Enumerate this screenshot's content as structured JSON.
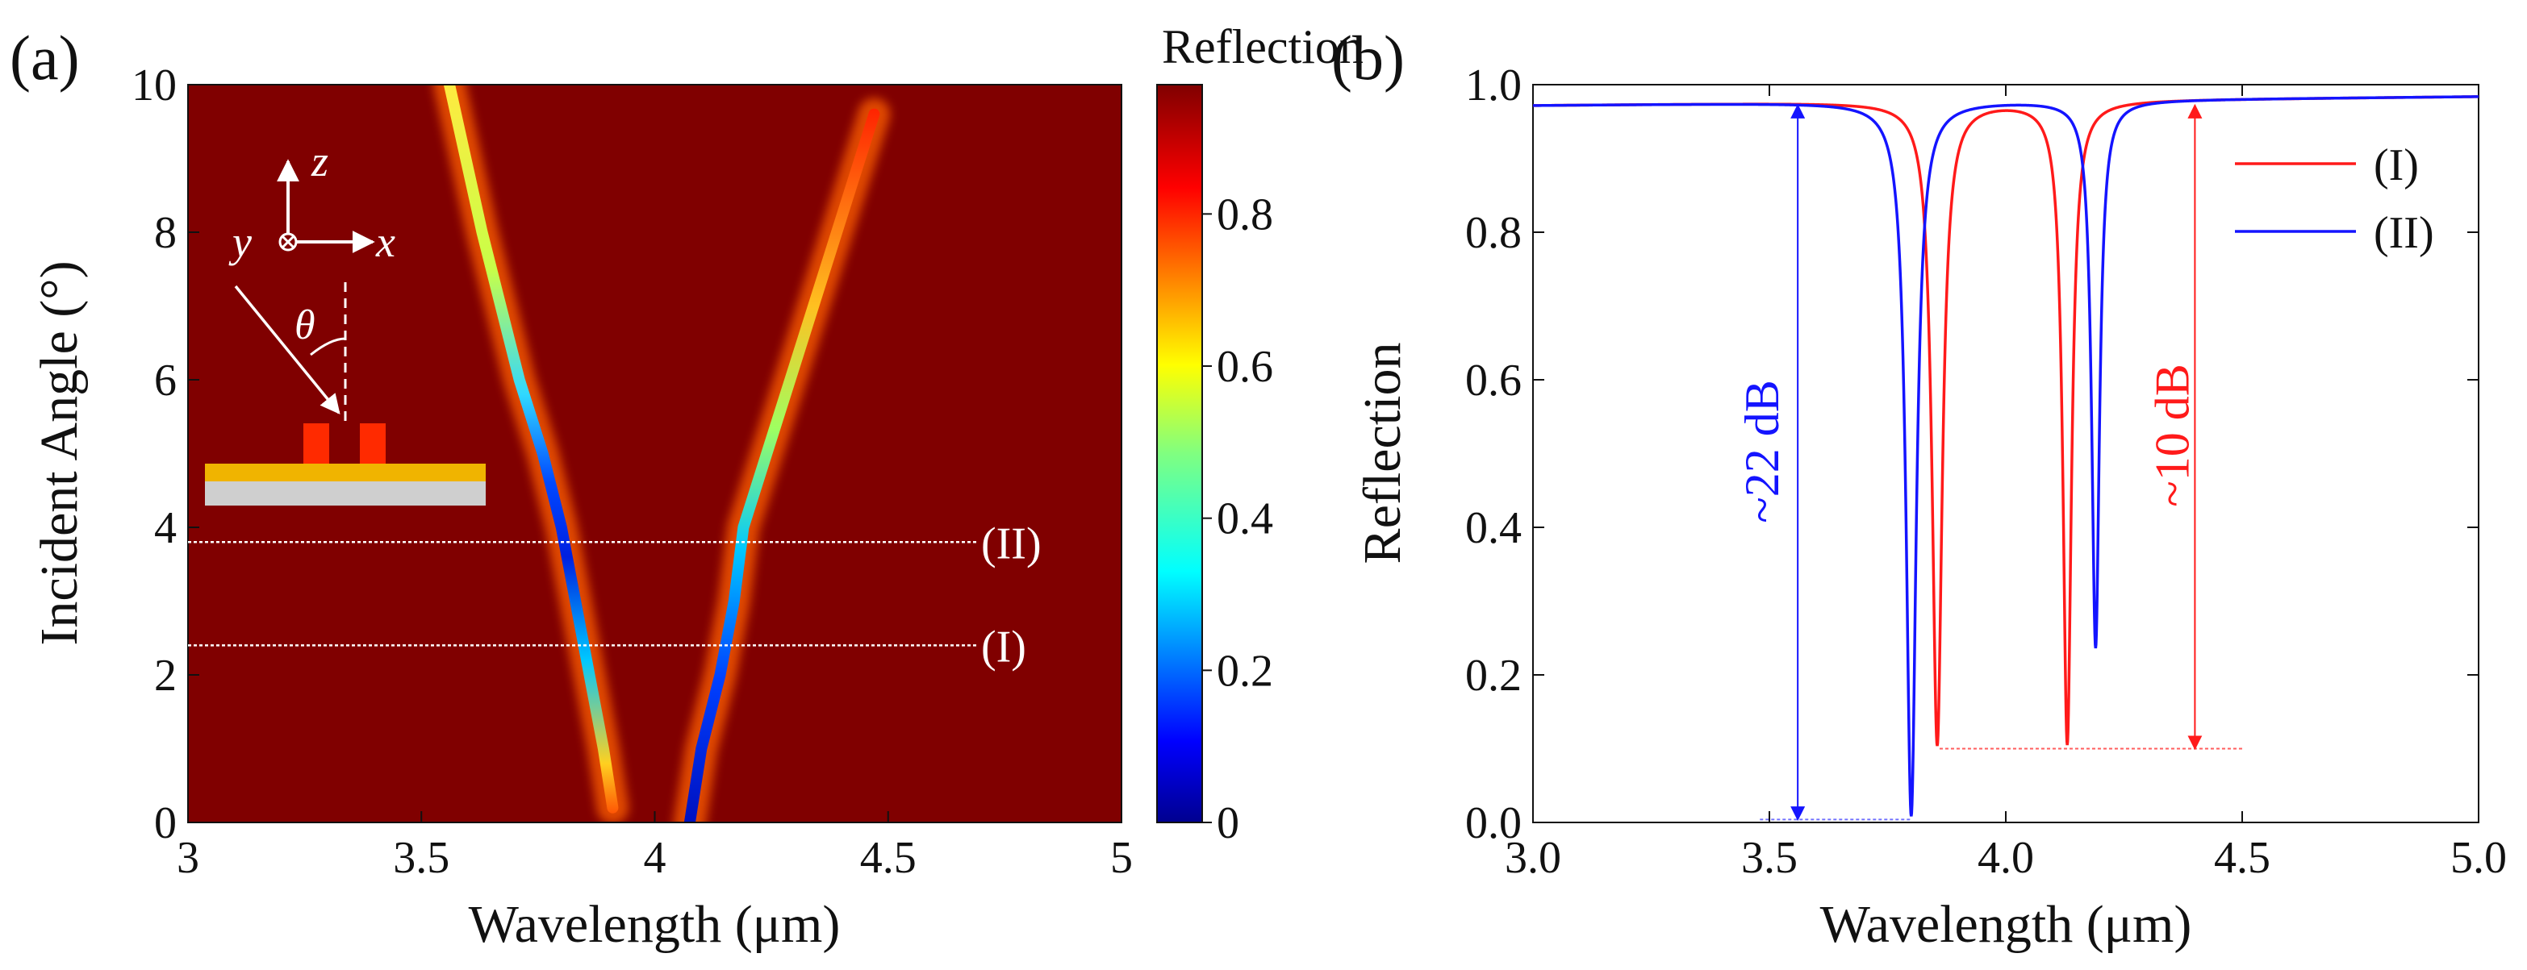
{
  "colors": {
    "curve_I": "#ff1a1a",
    "curve_II": "#1414ff",
    "heatmap_high": "#800000",
    "heatmap_low": "#00008f",
    "slab_metal": "#f0b400",
    "slab_substrate": "#cfcfcf",
    "ridge": "#ff2a00"
  },
  "panel_a": {
    "label": "(a)",
    "title_colorbar": "Reflection",
    "inset": {
      "axis_z": "z",
      "axis_x": "x",
      "axis_y": "y",
      "angle": "θ"
    },
    "cut_labels": [
      "(II)",
      "(I)"
    ]
  },
  "panel_b": {
    "label": "(b)",
    "annot_blue": "~22 dB",
    "annot_red": "~10 dB"
  },
  "chart_data": [
    {
      "type": "heatmap",
      "title": "",
      "xlabel": "Wavelength (μm)",
      "ylabel": "Incident Angle (°)",
      "xlim": [
        3,
        5
      ],
      "ylim": [
        0,
        10
      ],
      "xticks": [
        "3",
        "3.5",
        "4",
        "4.5",
        "5"
      ],
      "xtick_values": [
        3,
        3.5,
        4,
        4.5,
        5
      ],
      "yticks": [
        "0",
        "2",
        "4",
        "6",
        "8",
        "10"
      ],
      "ytick_values": [
        0,
        2,
        4,
        6,
        8,
        10
      ],
      "colorbar": {
        "label": "Reflection",
        "range": [
          0,
          0.97
        ],
        "ticks": [
          "0",
          "0.2",
          "0.4",
          "0.6",
          "0.8"
        ],
        "tick_values": [
          0,
          0.2,
          0.4,
          0.6,
          0.8
        ]
      },
      "resonances": [
        {
          "name": "left branch",
          "angles": [
            10,
            8,
            6,
            5,
            4,
            3,
            2,
            1,
            0.2
          ],
          "wavelengths": [
            3.56,
            3.63,
            3.71,
            3.76,
            3.8,
            3.83,
            3.86,
            3.89,
            3.91
          ]
        },
        {
          "name": "right branch",
          "angles": [
            0,
            1,
            2,
            3,
            4,
            5,
            6,
            7,
            8,
            9.6
          ],
          "wavelengths": [
            4.075,
            4.1,
            4.14,
            4.17,
            4.19,
            4.24,
            4.29,
            4.34,
            4.39,
            4.47
          ]
        }
      ],
      "cuts": [
        {
          "label": "(II)",
          "angle": 3.8
        },
        {
          "label": "(I)",
          "angle": 2.4
        }
      ]
    },
    {
      "type": "line",
      "title": "",
      "xlabel": "Wavelength (μm)",
      "ylabel": "Reflection",
      "xlim": [
        3.0,
        5.0
      ],
      "ylim": [
        0.0,
        1.0
      ],
      "xticks": [
        "3.0",
        "3.5",
        "4.0",
        "4.5",
        "5.0"
      ],
      "xtick_values": [
        3.0,
        3.5,
        4.0,
        4.5,
        5.0
      ],
      "yticks": [
        "0.0",
        "0.2",
        "0.4",
        "0.6",
        "0.8",
        "1.0"
      ],
      "ytick_values": [
        0.0,
        0.2,
        0.4,
        0.6,
        0.8,
        1.0
      ],
      "legend": [
        "(I)",
        "(II)"
      ],
      "legend_position": "top-right",
      "series": [
        {
          "name": "(I)",
          "color": "#ff1a1a",
          "baseline": 0.972,
          "dips": [
            {
              "center": 3.855,
              "min": 0.1,
              "width": 0.013
            },
            {
              "center": 4.13,
              "min": 0.1,
              "width": 0.011
            }
          ]
        },
        {
          "name": "(II)",
          "color": "#1414ff",
          "baseline": 0.972,
          "dips": [
            {
              "center": 3.8,
              "min": 0.004,
              "width": 0.013
            },
            {
              "center": 4.19,
              "min": 0.23,
              "width": 0.01
            }
          ]
        }
      ],
      "annotations": [
        {
          "text": "~22 dB",
          "color": "#1414ff",
          "x": 3.56,
          "from": 0.004,
          "to": 0.972
        },
        {
          "text": "~10 dB",
          "color": "#ff1a1a",
          "x": 4.4,
          "from": 0.1,
          "to": 0.972
        }
      ]
    }
  ]
}
